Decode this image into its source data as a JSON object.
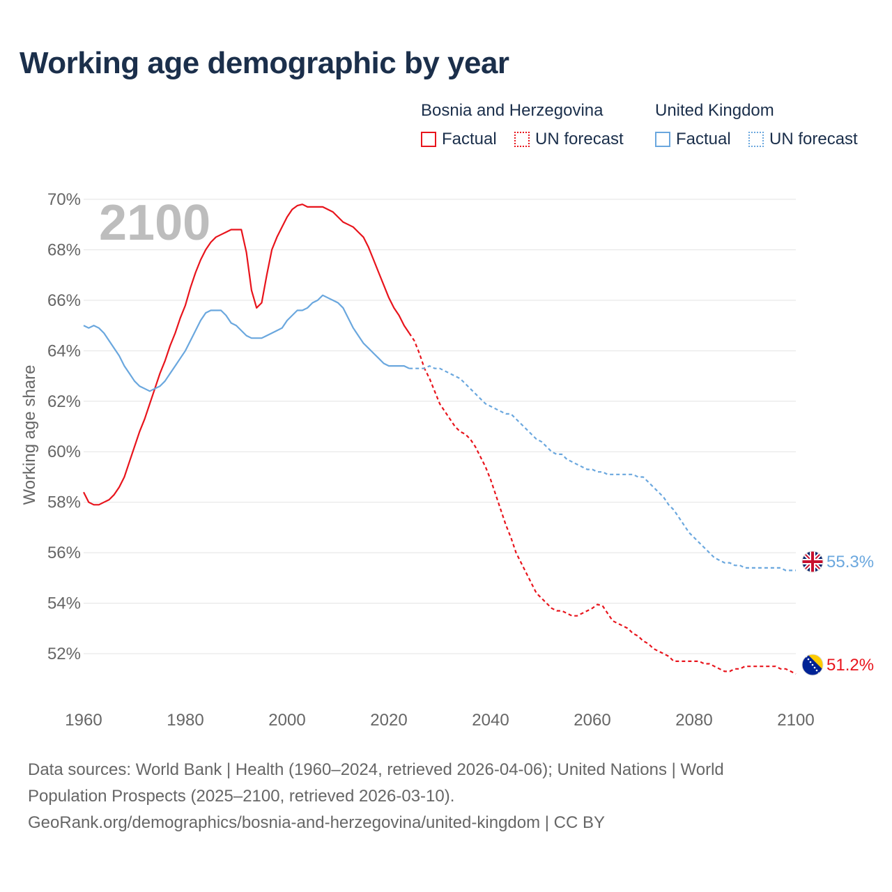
{
  "title": "Working age demographic by year",
  "legend": {
    "groups": [
      {
        "name": "Bosnia and Herzegovina",
        "factual_label": "Factual",
        "forecast_label": "UN forecast",
        "color": "#e8141c"
      },
      {
        "name": "United Kingdom",
        "factual_label": "Factual",
        "forecast_label": "UN forecast",
        "color": "#6aa7de"
      }
    ]
  },
  "watermark_year": "2100",
  "source": {
    "line1": "Data sources: World Bank | Health (1960–2024, retrieved 2026-04-06); United Nations | World",
    "line2": "Population Prospects (2025–2100, retrieved 2026-03-10).",
    "line3": "GeoRank.org/demographics/bosnia-and-herzegovina/united-kingdom | CC BY"
  },
  "chart_data": {
    "type": "line",
    "title": "Working age demographic by year",
    "xlabel": "",
    "ylabel": "Working age share",
    "xlim": [
      1960,
      2100
    ],
    "ylim": [
      50.4,
      70
    ],
    "x_ticks": [
      1960,
      1980,
      2000,
      2020,
      2040,
      2060,
      2080,
      2100
    ],
    "y_ticks": [
      52,
      54,
      56,
      58,
      60,
      62,
      64,
      66,
      68,
      70
    ],
    "y_tick_labels": [
      "52%",
      "54%",
      "56%",
      "58%",
      "60%",
      "62%",
      "64%",
      "66%",
      "68%",
      "70%"
    ],
    "grid": true,
    "forecast_start_year": 2024,
    "series": [
      {
        "name": "Bosnia and Herzegovina",
        "color": "#e8141c",
        "end_label": "51.2%",
        "end_icon": "bosnia-flag-icon",
        "factual": [
          [
            1960,
            58.4
          ],
          [
            1961,
            58.0
          ],
          [
            1962,
            57.9
          ],
          [
            1963,
            57.9
          ],
          [
            1964,
            58.0
          ],
          [
            1965,
            58.1
          ],
          [
            1966,
            58.3
          ],
          [
            1967,
            58.6
          ],
          [
            1968,
            59.0
          ],
          [
            1969,
            59.6
          ],
          [
            1970,
            60.2
          ],
          [
            1971,
            60.8
          ],
          [
            1972,
            61.3
          ],
          [
            1973,
            61.9
          ],
          [
            1974,
            62.5
          ],
          [
            1975,
            63.1
          ],
          [
            1976,
            63.6
          ],
          [
            1977,
            64.2
          ],
          [
            1978,
            64.7
          ],
          [
            1979,
            65.3
          ],
          [
            1980,
            65.8
          ],
          [
            1981,
            66.5
          ],
          [
            1982,
            67.1
          ],
          [
            1983,
            67.6
          ],
          [
            1984,
            68.0
          ],
          [
            1985,
            68.3
          ],
          [
            1986,
            68.5
          ],
          [
            1987,
            68.6
          ],
          [
            1988,
            68.7
          ],
          [
            1989,
            68.8
          ],
          [
            1990,
            68.8
          ],
          [
            1991,
            68.8
          ],
          [
            1992,
            67.9
          ],
          [
            1993,
            66.4
          ],
          [
            1994,
            65.7
          ],
          [
            1995,
            65.9
          ],
          [
            1996,
            67.0
          ],
          [
            1997,
            68.0
          ],
          [
            1998,
            68.5
          ],
          [
            1999,
            68.9
          ],
          [
            2000,
            69.3
          ],
          [
            2001,
            69.6
          ],
          [
            2002,
            69.75
          ],
          [
            2003,
            69.8
          ],
          [
            2004,
            69.7
          ],
          [
            2005,
            69.7
          ],
          [
            2006,
            69.7
          ],
          [
            2007,
            69.7
          ],
          [
            2008,
            69.6
          ],
          [
            2009,
            69.5
          ],
          [
            2010,
            69.3
          ],
          [
            2011,
            69.1
          ],
          [
            2012,
            69.0
          ],
          [
            2013,
            68.9
          ],
          [
            2014,
            68.7
          ],
          [
            2015,
            68.5
          ],
          [
            2016,
            68.1
          ],
          [
            2017,
            67.6
          ],
          [
            2018,
            67.1
          ],
          [
            2019,
            66.6
          ],
          [
            2020,
            66.1
          ],
          [
            2021,
            65.7
          ],
          [
            2022,
            65.4
          ],
          [
            2023,
            65.0
          ],
          [
            2024,
            64.7
          ]
        ],
        "forecast": [
          [
            2024,
            64.7
          ],
          [
            2025,
            64.4
          ],
          [
            2026,
            63.9
          ],
          [
            2027,
            63.3
          ],
          [
            2028,
            62.9
          ],
          [
            2029,
            62.4
          ],
          [
            2030,
            61.9
          ],
          [
            2031,
            61.6
          ],
          [
            2032,
            61.3
          ],
          [
            2033,
            61.0
          ],
          [
            2034,
            60.8
          ],
          [
            2035,
            60.7
          ],
          [
            2036,
            60.5
          ],
          [
            2037,
            60.2
          ],
          [
            2038,
            59.8
          ],
          [
            2039,
            59.4
          ],
          [
            2040,
            58.9
          ],
          [
            2041,
            58.3
          ],
          [
            2042,
            57.7
          ],
          [
            2043,
            57.1
          ],
          [
            2044,
            56.6
          ],
          [
            2045,
            56.0
          ],
          [
            2046,
            55.6
          ],
          [
            2047,
            55.2
          ],
          [
            2048,
            54.8
          ],
          [
            2049,
            54.4
          ],
          [
            2050,
            54.2
          ],
          [
            2051,
            54.0
          ],
          [
            2052,
            53.8
          ],
          [
            2053,
            53.7
          ],
          [
            2054,
            53.7
          ],
          [
            2055,
            53.6
          ],
          [
            2056,
            53.5
          ],
          [
            2057,
            53.5
          ],
          [
            2058,
            53.6
          ],
          [
            2059,
            53.7
          ],
          [
            2060,
            53.8
          ],
          [
            2061,
            53.95
          ],
          [
            2062,
            53.9
          ],
          [
            2063,
            53.6
          ],
          [
            2064,
            53.3
          ],
          [
            2065,
            53.2
          ],
          [
            2066,
            53.1
          ],
          [
            2067,
            53.0
          ],
          [
            2068,
            52.8
          ],
          [
            2069,
            52.7
          ],
          [
            2070,
            52.5
          ],
          [
            2071,
            52.4
          ],
          [
            2072,
            52.2
          ],
          [
            2073,
            52.1
          ],
          [
            2074,
            52.0
          ],
          [
            2075,
            51.9
          ],
          [
            2076,
            51.7
          ],
          [
            2077,
            51.7
          ],
          [
            2078,
            51.7
          ],
          [
            2079,
            51.7
          ],
          [
            2080,
            51.7
          ],
          [
            2081,
            51.7
          ],
          [
            2082,
            51.6
          ],
          [
            2083,
            51.6
          ],
          [
            2084,
            51.5
          ],
          [
            2085,
            51.4
          ],
          [
            2086,
            51.3
          ],
          [
            2087,
            51.3
          ],
          [
            2088,
            51.4
          ],
          [
            2089,
            51.4
          ],
          [
            2090,
            51.5
          ],
          [
            2091,
            51.5
          ],
          [
            2092,
            51.5
          ],
          [
            2093,
            51.5
          ],
          [
            2094,
            51.5
          ],
          [
            2095,
            51.5
          ],
          [
            2096,
            51.5
          ],
          [
            2097,
            51.4
          ],
          [
            2098,
            51.4
          ],
          [
            2099,
            51.3
          ],
          [
            2100,
            51.2
          ]
        ]
      },
      {
        "name": "United Kingdom",
        "color": "#6aa7de",
        "end_label": "55.3%",
        "end_icon": "united-kingdom-flag-icon",
        "factual": [
          [
            1960,
            65.0
          ],
          [
            1961,
            64.9
          ],
          [
            1962,
            65.0
          ],
          [
            1963,
            64.9
          ],
          [
            1964,
            64.7
          ],
          [
            1965,
            64.4
          ],
          [
            1966,
            64.1
          ],
          [
            1967,
            63.8
          ],
          [
            1968,
            63.4
          ],
          [
            1969,
            63.1
          ],
          [
            1970,
            62.8
          ],
          [
            1971,
            62.6
          ],
          [
            1972,
            62.5
          ],
          [
            1973,
            62.4
          ],
          [
            1974,
            62.5
          ],
          [
            1975,
            62.6
          ],
          [
            1976,
            62.8
          ],
          [
            1977,
            63.1
          ],
          [
            1978,
            63.4
          ],
          [
            1979,
            63.7
          ],
          [
            1980,
            64.0
          ],
          [
            1981,
            64.4
          ],
          [
            1982,
            64.8
          ],
          [
            1983,
            65.2
          ],
          [
            1984,
            65.5
          ],
          [
            1985,
            65.6
          ],
          [
            1986,
            65.6
          ],
          [
            1987,
            65.6
          ],
          [
            1988,
            65.4
          ],
          [
            1989,
            65.1
          ],
          [
            1990,
            65.0
          ],
          [
            1991,
            64.8
          ],
          [
            1992,
            64.6
          ],
          [
            1993,
            64.5
          ],
          [
            1994,
            64.5
          ],
          [
            1995,
            64.5
          ],
          [
            1996,
            64.6
          ],
          [
            1997,
            64.7
          ],
          [
            1998,
            64.8
          ],
          [
            1999,
            64.9
          ],
          [
            2000,
            65.2
          ],
          [
            2001,
            65.4
          ],
          [
            2002,
            65.6
          ],
          [
            2003,
            65.6
          ],
          [
            2004,
            65.7
          ],
          [
            2005,
            65.9
          ],
          [
            2006,
            66.0
          ],
          [
            2007,
            66.2
          ],
          [
            2008,
            66.1
          ],
          [
            2009,
            66.0
          ],
          [
            2010,
            65.9
          ],
          [
            2011,
            65.7
          ],
          [
            2012,
            65.3
          ],
          [
            2013,
            64.9
          ],
          [
            2014,
            64.6
          ],
          [
            2015,
            64.3
          ],
          [
            2016,
            64.1
          ],
          [
            2017,
            63.9
          ],
          [
            2018,
            63.7
          ],
          [
            2019,
            63.5
          ],
          [
            2020,
            63.4
          ],
          [
            2021,
            63.4
          ],
          [
            2022,
            63.4
          ],
          [
            2023,
            63.4
          ],
          [
            2024,
            63.3
          ]
        ],
        "forecast": [
          [
            2024,
            63.3
          ],
          [
            2025,
            63.3
          ],
          [
            2026,
            63.3
          ],
          [
            2027,
            63.3
          ],
          [
            2028,
            63.4
          ],
          [
            2029,
            63.3
          ],
          [
            2030,
            63.3
          ],
          [
            2031,
            63.2
          ],
          [
            2032,
            63.1
          ],
          [
            2033,
            63.0
          ],
          [
            2034,
            62.9
          ],
          [
            2035,
            62.7
          ],
          [
            2036,
            62.5
          ],
          [
            2037,
            62.3
          ],
          [
            2038,
            62.1
          ],
          [
            2039,
            61.9
          ],
          [
            2040,
            61.8
          ],
          [
            2041,
            61.7
          ],
          [
            2042,
            61.6
          ],
          [
            2043,
            61.5
          ],
          [
            2044,
            61.5
          ],
          [
            2045,
            61.3
          ],
          [
            2046,
            61.1
          ],
          [
            2047,
            60.9
          ],
          [
            2048,
            60.7
          ],
          [
            2049,
            60.5
          ],
          [
            2050,
            60.4
          ],
          [
            2051,
            60.2
          ],
          [
            2052,
            60.0
          ],
          [
            2053,
            59.9
          ],
          [
            2054,
            59.9
          ],
          [
            2055,
            59.7
          ],
          [
            2056,
            59.6
          ],
          [
            2057,
            59.5
          ],
          [
            2058,
            59.4
          ],
          [
            2059,
            59.3
          ],
          [
            2060,
            59.3
          ],
          [
            2061,
            59.2
          ],
          [
            2062,
            59.2
          ],
          [
            2063,
            59.1
          ],
          [
            2064,
            59.1
          ],
          [
            2065,
            59.1
          ],
          [
            2066,
            59.1
          ],
          [
            2067,
            59.1
          ],
          [
            2068,
            59.1
          ],
          [
            2069,
            59.0
          ],
          [
            2070,
            59.0
          ],
          [
            2071,
            58.8
          ],
          [
            2072,
            58.6
          ],
          [
            2073,
            58.4
          ],
          [
            2074,
            58.2
          ],
          [
            2075,
            57.9
          ],
          [
            2076,
            57.7
          ],
          [
            2077,
            57.4
          ],
          [
            2078,
            57.1
          ],
          [
            2079,
            56.8
          ],
          [
            2080,
            56.6
          ],
          [
            2081,
            56.4
          ],
          [
            2082,
            56.2
          ],
          [
            2083,
            56.0
          ],
          [
            2084,
            55.8
          ],
          [
            2085,
            55.7
          ],
          [
            2086,
            55.6
          ],
          [
            2087,
            55.6
          ],
          [
            2088,
            55.5
          ],
          [
            2089,
            55.5
          ],
          [
            2090,
            55.4
          ],
          [
            2091,
            55.4
          ],
          [
            2092,
            55.4
          ],
          [
            2093,
            55.4
          ],
          [
            2094,
            55.4
          ],
          [
            2095,
            55.4
          ],
          [
            2096,
            55.4
          ],
          [
            2097,
            55.4
          ],
          [
            2098,
            55.3
          ],
          [
            2099,
            55.3
          ],
          [
            2100,
            55.3
          ]
        ]
      }
    ]
  }
}
